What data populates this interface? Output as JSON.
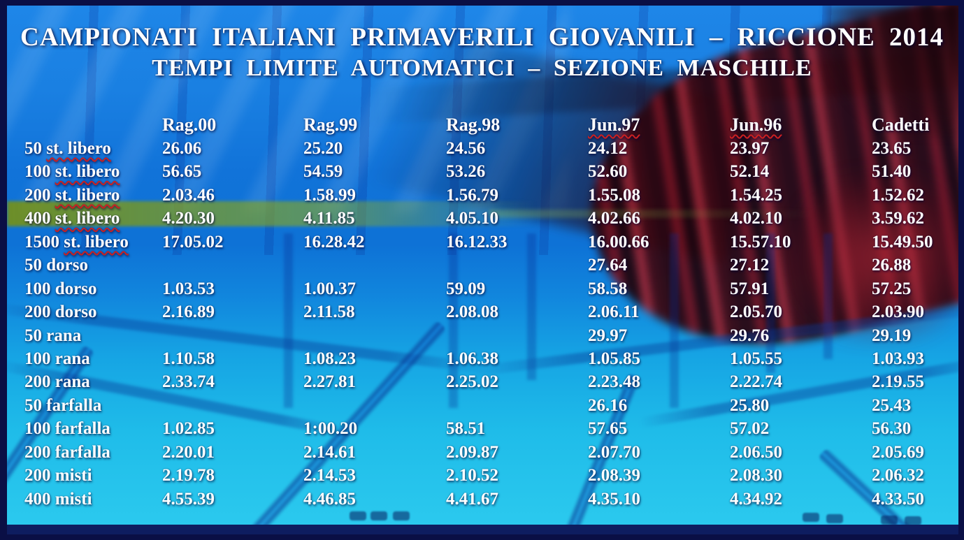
{
  "title": {
    "line1": "CAMPIONATI ITALIANI PRIMAVERILI GIOVANILI – RICCIONE 2014",
    "line2": "TEMPI LIMITE AUTOMATICI – SEZIONE MASCHILE"
  },
  "table": {
    "columns": [
      {
        "label": "Rag.00",
        "squiggle": false
      },
      {
        "label": "Rag.99",
        "squiggle": false
      },
      {
        "label": "Rag.98",
        "squiggle": false
      },
      {
        "label": "Jun.97",
        "squiggle": true
      },
      {
        "label": "Jun.96",
        "squiggle": true
      },
      {
        "label": "Cadetti",
        "squiggle": false
      }
    ],
    "rows": [
      {
        "distance": "50",
        "stroke": "st. libero",
        "squiggle": true,
        "times": [
          "26.06",
          "25.20",
          "24.56",
          "24.12",
          "23.97",
          "23.65"
        ]
      },
      {
        "distance": "100",
        "stroke": "st. libero",
        "squiggle": true,
        "times": [
          "56.65",
          "54.59",
          "53.26",
          "52.60",
          "52.14",
          "51.40"
        ]
      },
      {
        "distance": "200",
        "stroke": "st. libero",
        "squiggle": true,
        "times": [
          "2.03.46",
          "1.58.99",
          "1.56.79",
          "1.55.08",
          "1.54.25",
          "1.52.62"
        ]
      },
      {
        "distance": "400",
        "stroke": "st. libero",
        "squiggle": true,
        "times": [
          "4.20.30",
          "4.11.85",
          "4.05.10",
          "4.02.66",
          "4.02.10",
          "3.59.62"
        ]
      },
      {
        "distance": "1500",
        "stroke": "st. libero",
        "squiggle": true,
        "times": [
          "17.05.02",
          "16.28.42",
          "16.12.33",
          "16.00.66",
          "15.57.10",
          "15.49.50"
        ]
      },
      {
        "distance": "50",
        "stroke": "dorso",
        "squiggle": false,
        "times": [
          "",
          "",
          "",
          "27.64",
          "27.12",
          "26.88"
        ]
      },
      {
        "distance": "100",
        "stroke": "dorso",
        "squiggle": false,
        "times": [
          "1.03.53",
          "1.00.37",
          "59.09",
          "58.58",
          "57.91",
          "57.25"
        ]
      },
      {
        "distance": "200",
        "stroke": "dorso",
        "squiggle": false,
        "times": [
          "2.16.89",
          "2.11.58",
          "2.08.08",
          "2.06.11",
          "2.05.70",
          "2.03.90"
        ]
      },
      {
        "distance": "50",
        "stroke": "rana",
        "squiggle": false,
        "times": [
          "",
          "",
          "",
          "29.97",
          "29.76",
          "29.19"
        ]
      },
      {
        "distance": "100",
        "stroke": "rana",
        "squiggle": false,
        "times": [
          "1.10.58",
          "1.08.23",
          "1.06.38",
          "1.05.85",
          "1.05.55",
          "1.03.93"
        ]
      },
      {
        "distance": "200",
        "stroke": "rana",
        "squiggle": false,
        "times": [
          "2.33.74",
          "2.27.81",
          "2.25.02",
          "2.23.48",
          "2.22.74",
          "2.19.55"
        ]
      },
      {
        "distance": "50",
        "stroke": "farfalla",
        "squiggle": false,
        "times": [
          "",
          "",
          "",
          "26.16",
          "25.80",
          "25.43"
        ]
      },
      {
        "distance": "100",
        "stroke": "farfalla",
        "squiggle": false,
        "times": [
          "1.02.85",
          "1:00.20",
          "58.51",
          "57.65",
          "57.02",
          "56.30"
        ]
      },
      {
        "distance": "200",
        "stroke": "farfalla",
        "squiggle": false,
        "times": [
          "2.20.01",
          "2.14.61",
          "2.09.87",
          "2.07.70",
          "2.06.50",
          "2.05.69"
        ]
      },
      {
        "distance": "200",
        "stroke": "misti",
        "squiggle": false,
        "times": [
          "2.19.78",
          "2.14.53",
          "2.10.52",
          "2.08.39",
          "2.08.30",
          "2.06.32"
        ]
      },
      {
        "distance": "400",
        "stroke": "misti",
        "squiggle": false,
        "times": [
          "4.55.39",
          "4.46.85",
          "4.41.67",
          "4.35.10",
          "4.34.92",
          "4.33.50"
        ]
      }
    ]
  },
  "colors": {
    "text": "#ffffff",
    "squiggle": "#cc2020",
    "frameBorder": "#0a0f45",
    "bottomBar": "#0e1d60",
    "poolTop": "#1e86e8",
    "poolLower": "#16a5e4",
    "poolBottom": "#2bc9ee",
    "ropeDark": "#2a0610",
    "ropeRed": "#7c1322",
    "ropeBright": "#a12736"
  }
}
